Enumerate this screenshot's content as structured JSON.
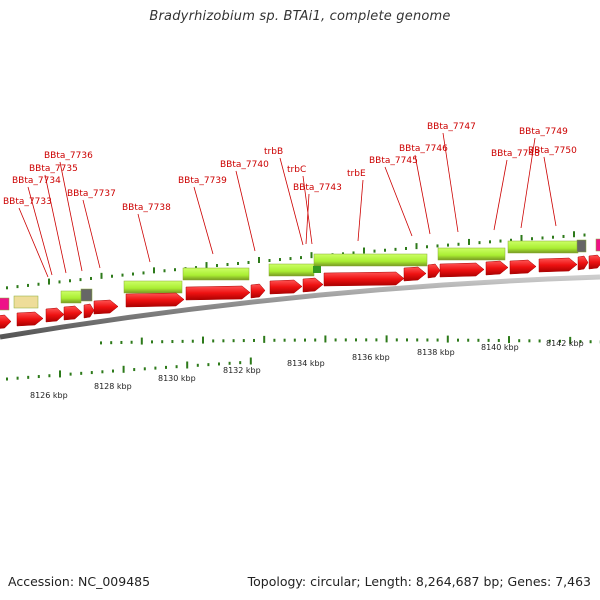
{
  "title": "Bradyrhizobium sp. BTAi1, complete genome",
  "footer": {
    "accession": "Accession: NC_009485",
    "summary": "Topology: circular; Length: 8,264,687 bp; Genes: 7,463"
  },
  "gene_labels": [
    {
      "text": "BBta_7733"
    },
    {
      "text": "BBta_7734"
    },
    {
      "text": "BBta_7735"
    },
    {
      "text": "BBta_7736"
    },
    {
      "text": "BBta_7737"
    },
    {
      "text": "BBta_7738"
    },
    {
      "text": "BBta_7739"
    },
    {
      "text": "BBta_7740"
    },
    {
      "text": "trbB"
    },
    {
      "text": "trbC"
    },
    {
      "text": "BBta_7743"
    },
    {
      "text": "trbE"
    },
    {
      "text": "BBta_7745"
    },
    {
      "text": "BBta_7746"
    },
    {
      "text": "BBta_7747"
    },
    {
      "text": "BBta_7748"
    },
    {
      "text": "BBta_7749"
    },
    {
      "text": "BBta_7750"
    }
  ],
  "kbp_labels": [
    "8126 kbp",
    "8128 kbp",
    "8130 kbp",
    "8132 kbp",
    "8134 kbp",
    "8136 kbp",
    "8138 kbp",
    "8140 kbp",
    "8142 kbp"
  ],
  "colors": {
    "gene_label": "#cc0000",
    "cds_arrow": "#ee1111",
    "gene_bar": "#aaee33",
    "backbone": "#888888",
    "tick": "#2d7a1a",
    "magenta_feature": "#ee1188",
    "khaki_feature": "#eedd99",
    "gray_feature": "#666666"
  }
}
